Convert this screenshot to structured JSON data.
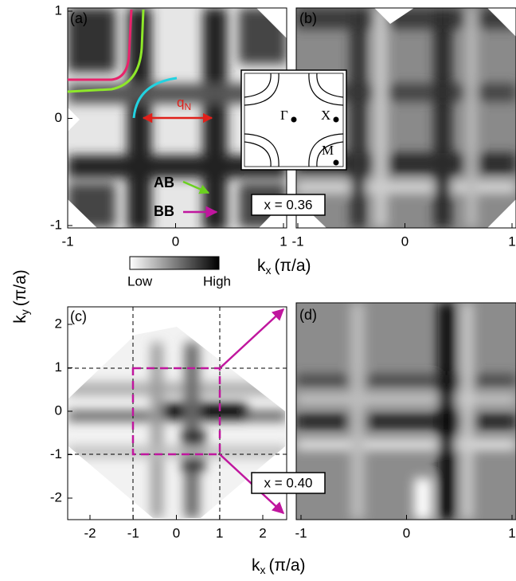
{
  "panels": [
    {
      "label": "(a)"
    },
    {
      "label": "(b)"
    },
    {
      "label": "(c)"
    },
    {
      "label": "(d)"
    }
  ],
  "panel_a": {
    "y_ticks": [
      "1",
      "0",
      "-1"
    ],
    "x_ticks": [
      "-1",
      "0",
      "1"
    ],
    "annotations": {
      "q": "q",
      "q_sub": "N",
      "ab": "AB",
      "bb": "BB"
    }
  },
  "panel_b": {
    "x_ticks": [
      "-1",
      "0",
      "1"
    ],
    "doping": "x = 0.36",
    "inset": {
      "gamma": "Γ",
      "x": "X",
      "m": "M"
    }
  },
  "colorbar": {
    "low": "Low",
    "high": "High"
  },
  "axis_labels": {
    "kx_top": {
      "symbol": "k",
      "subscript": "x",
      "unit": "(π/a)"
    },
    "ky": {
      "symbol": "k",
      "subscript": "y",
      "unit": "(π/a)"
    },
    "kx_bottom": {
      "symbol": "k",
      "subscript": "x",
      "unit": "(π/a)"
    }
  },
  "panel_c": {
    "y_ticks": [
      "2",
      "1",
      "0",
      "-1",
      "-2"
    ],
    "x_ticks": [
      "-2",
      "-1",
      "0",
      "1",
      "2"
    ]
  },
  "panel_d": {
    "x_ticks": [
      "-1",
      "0",
      "1"
    ],
    "doping": "x = 0.40"
  }
}
